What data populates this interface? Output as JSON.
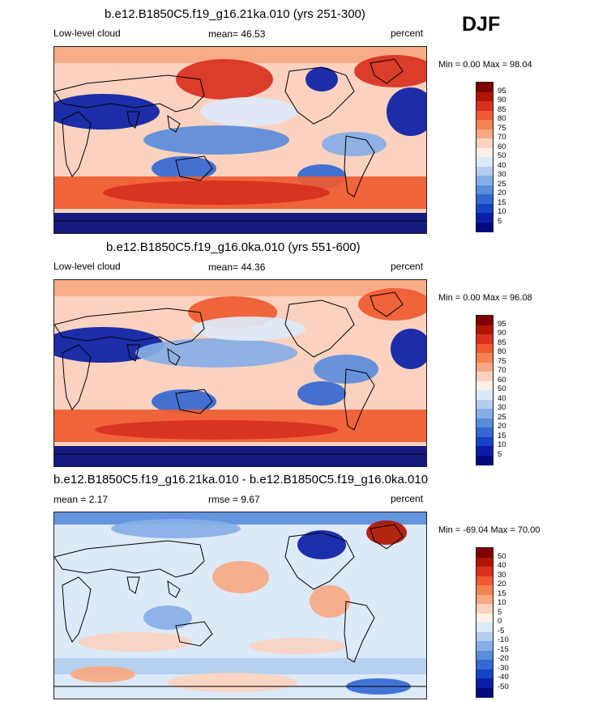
{
  "season": "DJF",
  "panels": [
    {
      "title": "b.e12.B1850C5.f19_g16.21ka.010 (yrs 251-300)",
      "left_label": "Low-level cloud",
      "center_label": "mean=  46.53",
      "right_label": "percent",
      "minmax": "Min =   0.00 Max =  98.04",
      "colorbar_labels": [
        "95",
        "90",
        "85",
        "80",
        "75",
        "70",
        "60",
        "50",
        "40",
        "30",
        "25",
        "20",
        "15",
        "10",
        "5"
      ],
      "map_kind": "abs1"
    },
    {
      "title": "b.e12.B1850C5.f19_g16.0ka.010 (yrs 551-600)",
      "left_label": "Low-level cloud",
      "center_label": "mean=  44.36",
      "right_label": "percent",
      "minmax": "Min =   0.00 Max =  96.08",
      "colorbar_labels": [
        "95",
        "90",
        "85",
        "80",
        "75",
        "70",
        "60",
        "50",
        "40",
        "30",
        "25",
        "20",
        "15",
        "10",
        "5"
      ],
      "map_kind": "abs2"
    },
    {
      "title": "b.e12.B1850C5.f19_g16.21ka.010 - b.e12.B1850C5.f19_g16.0ka.010",
      "left_label": "mean =   2.17",
      "center_label": "rmse =   9.67",
      "right_label": "percent",
      "minmax": "Min = -69.04 Max =  70.00",
      "colorbar_labels": [
        "50",
        "40",
        "30",
        "20",
        "15",
        "10",
        "5",
        "0",
        "-5",
        "-10",
        "-15",
        "-20",
        "-30",
        "-40",
        "-50"
      ],
      "map_kind": "diff"
    }
  ],
  "colors": {
    "palette": [
      "#7f0000",
      "#b01500",
      "#d7301f",
      "#ef5a30",
      "#f4834f",
      "#f7a882",
      "#fad2bf",
      "#fdf1e6",
      "#dce9f8",
      "#b3cdef",
      "#86aee6",
      "#5a8cdc",
      "#3467d1",
      "#1643c2",
      "#0a1ea6",
      "#000a7a"
    ],
    "land_outline": "#000000"
  }
}
